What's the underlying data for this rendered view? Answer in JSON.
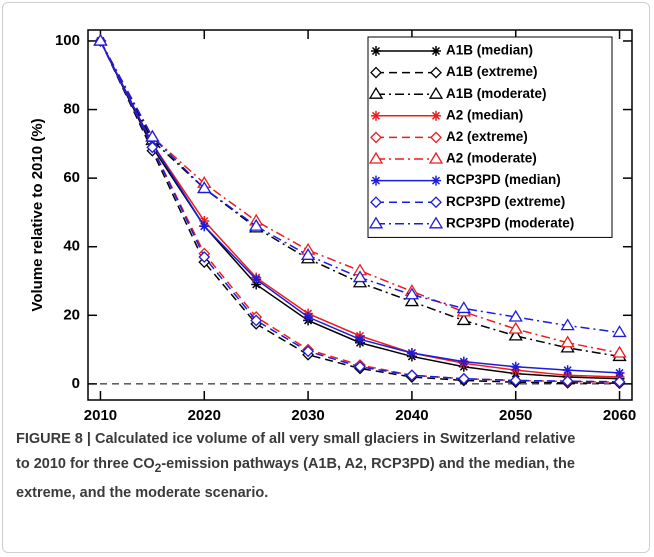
{
  "chart_data": {
    "type": "line",
    "y_label": "Volume relative to 2010 (%)",
    "x": [
      2010,
      2015,
      2020,
      2025,
      2030,
      2035,
      2040,
      2045,
      2050,
      2055,
      2060
    ],
    "xlim": [
      2008.8,
      2061.2
    ],
    "ylim": [
      -4.7,
      103.2
    ],
    "xticks": [
      2010,
      2020,
      2030,
      2040,
      2050,
      2060
    ],
    "yticks": [
      0,
      20,
      40,
      60,
      80,
      100
    ],
    "zero_line": true,
    "legend": "upper right",
    "series": [
      {
        "name": "A1B (median)",
        "color": "#000000",
        "dash": "solid",
        "marker": "asterisk",
        "values": [
          100,
          69,
          46,
          29,
          18.5,
          12,
          8,
          5,
          3,
          2,
          1.5
        ]
      },
      {
        "name": "A1B (extreme)",
        "color": "#000000",
        "dash": "dashed",
        "marker": "diamond",
        "values": [
          100,
          68,
          35.5,
          17.5,
          8.5,
          4.5,
          2,
          1,
          0.5,
          0.3,
          0.2
        ]
      },
      {
        "name": "A1B (moderate)",
        "color": "#000000",
        "dash": "dashdot",
        "marker": "triangle",
        "values": [
          100,
          71,
          57,
          45.5,
          36.5,
          29.5,
          24,
          18.5,
          14,
          10.5,
          8
        ]
      },
      {
        "name": "A2 (median)",
        "color": "#ee1c1c",
        "dash": "solid",
        "marker": "asterisk",
        "values": [
          100,
          70,
          47.5,
          31,
          20.5,
          14,
          9,
          6,
          4,
          2.5,
          2
        ]
      },
      {
        "name": "A2 (extreme)",
        "color": "#ee1c1c",
        "dash": "dashed",
        "marker": "diamond",
        "values": [
          100,
          69,
          38,
          19.5,
          10,
          5.5,
          2.5,
          1.5,
          1,
          0.7,
          0.5
        ]
      },
      {
        "name": "A2 (moderate)",
        "color": "#ee1c1c",
        "dash": "dashdot",
        "marker": "triangle",
        "values": [
          100,
          72,
          58.5,
          47.5,
          39,
          33,
          27,
          21,
          16,
          12,
          9
        ]
      },
      {
        "name": "RCP3PD (median)",
        "color": "#1c1cdc",
        "dash": "solid",
        "marker": "asterisk",
        "values": [
          100,
          70,
          46,
          30.5,
          19.5,
          13,
          9,
          6.5,
          5,
          4,
          3.2
        ]
      },
      {
        "name": "RCP3PD (extreme)",
        "color": "#1c1cdc",
        "dash": "dashed",
        "marker": "diamond",
        "values": [
          100,
          69,
          37,
          18.5,
          9.5,
          5,
          2.5,
          1.5,
          1,
          0.8,
          0.6
        ]
      },
      {
        "name": "RCP3PD (moderate)",
        "color": "#1c1cdc",
        "dash": "dashdot",
        "marker": "triangle",
        "values": [
          100,
          72,
          57,
          46,
          37.5,
          31,
          26,
          22,
          19.5,
          17,
          15
        ]
      }
    ],
    "caption": {
      "label": "FIGURE 8 |",
      "text": "Calculated ice volume of all very small glaciers in Switzerland relative to 2010 for three CO",
      "subscript": "2",
      "text_end": "-emission pathways (A1B, A2, RCP3PD) and the median, the extreme, and the moderate scenario."
    }
  }
}
